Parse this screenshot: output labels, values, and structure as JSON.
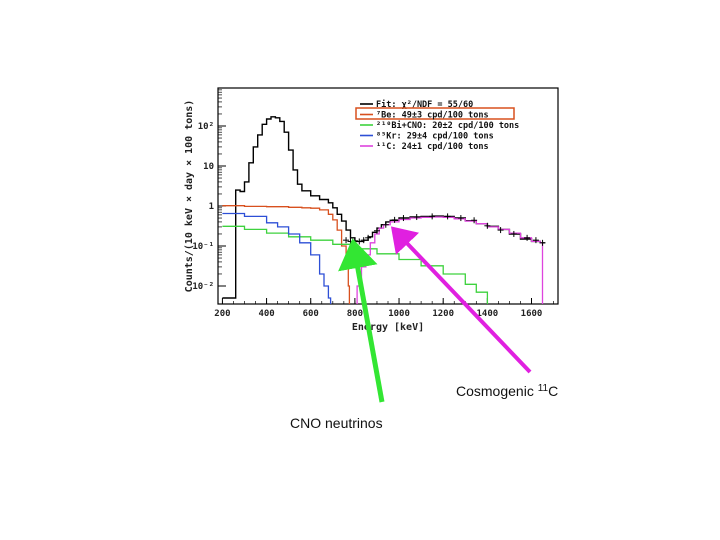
{
  "chart_data": {
    "type": "line",
    "xlabel": "Energy [keV]",
    "ylabel": "Counts/(10 keV × day × 100 tons)",
    "xlim": [
      180,
      1720
    ],
    "ylim_log10": [
      -2.45,
      2.95
    ],
    "log_y": true,
    "x_ticks": [
      200,
      400,
      600,
      800,
      1000,
      1200,
      1400,
      1600
    ],
    "x_tick_labels": [
      "200",
      "400",
      "600",
      "800",
      "1000",
      "1200",
      "1400",
      "1600"
    ],
    "y_ticks": [
      0.01,
      0.1,
      1,
      10,
      100
    ],
    "y_tick_labels": [
      "10⁻²",
      "10⁻¹",
      "1",
      "10",
      "10²"
    ],
    "grid": false,
    "legend_position": "top-right",
    "legend": [
      {
        "label": "Fit: χ²/NDF = 55/60",
        "color": "#000000",
        "boxed": false
      },
      {
        "label": "⁷Be: 49±3 cpd/100 tons",
        "color": "#d8501e",
        "boxed": true
      },
      {
        "label": "²¹⁰Bi+CNO: 20±2 cpd/100 tons",
        "color": "#3ed23e",
        "boxed": false
      },
      {
        "label": "⁸⁵Kr: 29±4 cpd/100 tons",
        "color": "#2d4fd6",
        "boxed": false
      },
      {
        "label": "¹¹C: 24±1 cpd/100 tons",
        "color": "#de44de",
        "boxed": false
      }
    ],
    "series": [
      {
        "name": "Fit: χ²/NDF = 55/60",
        "color": "#000000",
        "x": [
          200,
          240,
          260,
          280,
          300,
          320,
          340,
          360,
          380,
          400,
          420,
          440,
          460,
          480,
          500,
          520,
          540,
          560,
          600,
          640,
          680,
          700,
          720,
          740,
          760,
          780,
          800,
          820,
          840,
          860,
          880,
          900,
          920,
          940,
          960,
          1000,
          1050,
          1100,
          1150,
          1200,
          1250,
          1300,
          1350,
          1400,
          1450,
          1500,
          1550,
          1600,
          1640,
          1660
        ],
        "y": [
          0.005,
          0.005,
          2.5,
          2.3,
          4.0,
          12,
          30,
          60,
          110,
          150,
          170,
          160,
          130,
          70,
          25,
          8,
          3.5,
          2.4,
          1.8,
          1.45,
          1.2,
          0.9,
          0.62,
          0.42,
          0.25,
          0.16,
          0.13,
          0.13,
          0.14,
          0.17,
          0.22,
          0.28,
          0.34,
          0.4,
          0.44,
          0.5,
          0.53,
          0.55,
          0.56,
          0.55,
          0.5,
          0.43,
          0.36,
          0.31,
          0.26,
          0.2,
          0.15,
          0.13,
          0.12,
          0.12
        ]
      },
      {
        "name": "⁷Be: 49±3 cpd/100 tons",
        "color": "#d8501e",
        "x": [
          200,
          300,
          400,
          500,
          560,
          600,
          640,
          680,
          700,
          720,
          740,
          760,
          770,
          775
        ],
        "y": [
          1.02,
          0.98,
          0.96,
          0.93,
          0.9,
          0.88,
          0.8,
          0.62,
          0.45,
          0.25,
          0.1,
          0.03,
          0.01,
          0.003
        ]
      },
      {
        "name": "²¹⁰Bi+CNO: 20±2 cpd/100 tons",
        "color": "#3ed23e",
        "x": [
          200,
          300,
          400,
          500,
          600,
          700,
          800,
          900,
          1000,
          1100,
          1200,
          1300,
          1350,
          1400
        ],
        "y": [
          0.31,
          0.26,
          0.21,
          0.17,
          0.14,
          0.11,
          0.085,
          0.064,
          0.046,
          0.032,
          0.02,
          0.011,
          0.007,
          0.003
        ]
      },
      {
        "name": "⁸⁵Kr: 29±4 cpd/100 tons",
        "color": "#2d4fd6",
        "x": [
          200,
          300,
          400,
          450,
          500,
          550,
          600,
          640,
          660,
          680,
          690
        ],
        "y": [
          0.65,
          0.55,
          0.38,
          0.3,
          0.2,
          0.12,
          0.06,
          0.02,
          0.01,
          0.005,
          0.003
        ]
      },
      {
        "name": "¹¹C: 24±1 cpd/100 tons",
        "color": "#de44de",
        "x": [
          790,
          810,
          830,
          850,
          870,
          890,
          910,
          930,
          960,
          1000,
          1050,
          1100,
          1150,
          1200,
          1250,
          1300,
          1350,
          1400,
          1450,
          1500,
          1550,
          1600,
          1640,
          1648,
          1650
        ],
        "y": [
          0.003,
          0.01,
          0.03,
          0.06,
          0.12,
          0.2,
          0.28,
          0.34,
          0.4,
          0.46,
          0.5,
          0.52,
          0.53,
          0.52,
          0.48,
          0.42,
          0.36,
          0.3,
          0.26,
          0.21,
          0.16,
          0.13,
          0.12,
          0.12,
          0.003
        ]
      }
    ],
    "data_points": {
      "name": "data",
      "color": "#000000",
      "x": [
        760,
        780,
        800,
        820,
        840,
        860,
        900,
        940,
        980,
        1020,
        1080,
        1150,
        1220,
        1280,
        1340,
        1400,
        1460,
        1520,
        1580,
        1620,
        1650
      ],
      "y": [
        0.14,
        0.13,
        0.135,
        0.13,
        0.14,
        0.16,
        0.24,
        0.34,
        0.45,
        0.5,
        0.53,
        0.55,
        0.55,
        0.5,
        0.44,
        0.32,
        0.25,
        0.2,
        0.16,
        0.14,
        0.12
      ]
    },
    "annotations": [
      {
        "text": "Cosmogenic ",
        "sup": "11",
        "tail": "C",
        "arrow_color": "#e020e0",
        "points_to_x": 960,
        "points_to_y": 0.35
      },
      {
        "text": "CNO neutrinos",
        "arrow_color": "#33e633",
        "points_to_x": 810,
        "points_to_y": 0.12
      }
    ]
  }
}
